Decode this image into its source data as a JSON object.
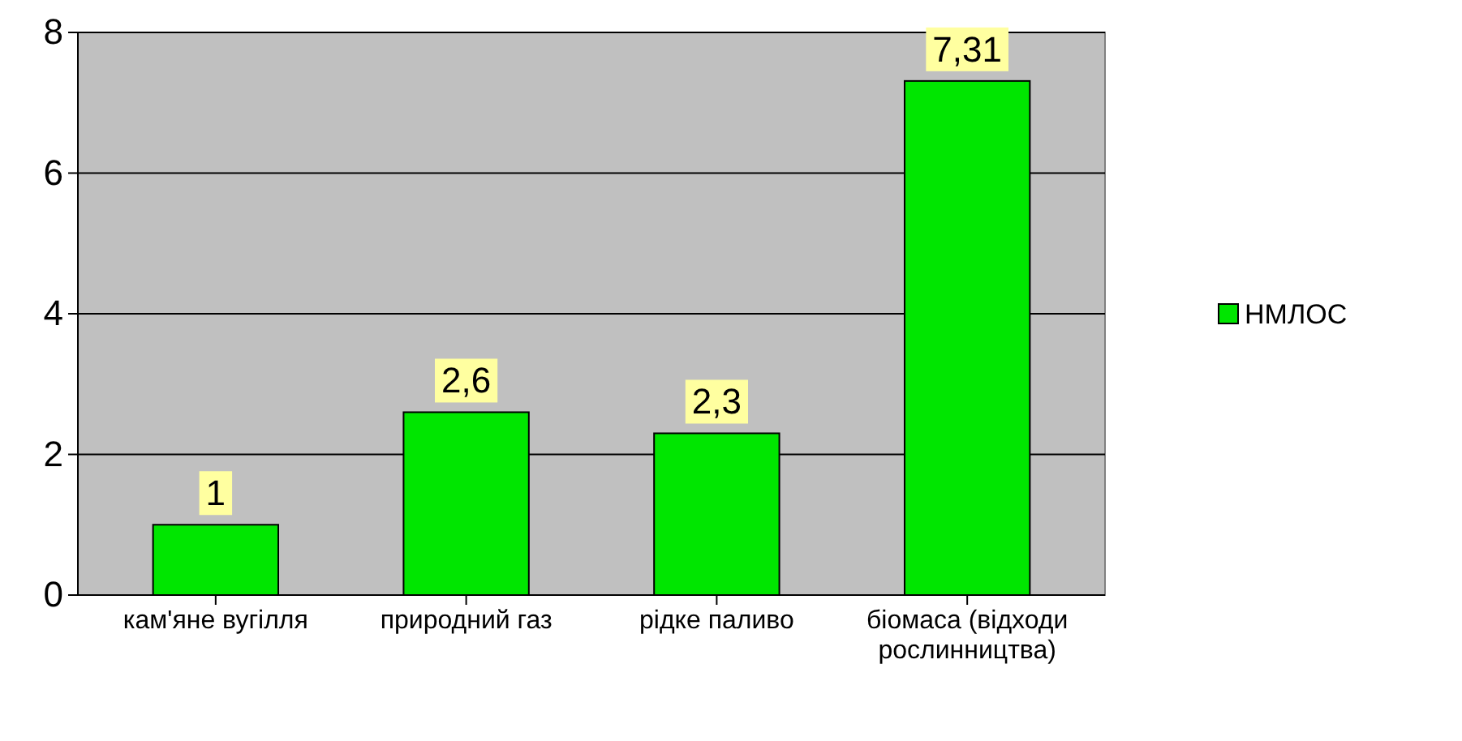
{
  "chart_data": {
    "type": "bar",
    "categories": [
      "кам'яне вугілля",
      "природний газ",
      "рідке паливо",
      "біомаса (відходи рослинництва)"
    ],
    "series": [
      {
        "name": "НМЛОС",
        "color": "#00e600",
        "values": [
          1,
          2.6,
          2.3,
          7.31
        ],
        "value_labels": [
          "1",
          "2,6",
          "2,3",
          "7,31"
        ]
      }
    ],
    "ylim": [
      0,
      8
    ],
    "yticks": [
      0,
      2,
      4,
      6,
      8
    ],
    "grid": "y",
    "legend": "right"
  }
}
